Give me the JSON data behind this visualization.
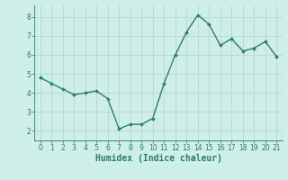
{
  "x": [
    0,
    1,
    2,
    3,
    4,
    5,
    6,
    7,
    8,
    9,
    10,
    11,
    12,
    13,
    14,
    15,
    16,
    17,
    18,
    19,
    20,
    21
  ],
  "y": [
    4.8,
    4.5,
    4.2,
    3.9,
    4.0,
    4.1,
    3.7,
    2.1,
    2.35,
    2.35,
    2.65,
    4.5,
    6.0,
    7.2,
    8.1,
    7.6,
    6.5,
    6.85,
    6.2,
    6.35,
    6.7,
    5.9
  ],
  "line_color": "#2e7d6e",
  "marker": "D",
  "marker_size": 2.0,
  "line_width": 1.0,
  "xlabel": "Humidex (Indice chaleur)",
  "xlabel_fontsize": 7.0,
  "xlabel_fontweight": "bold",
  "bg_color": "#ceeee8",
  "grid_color": "#b8d8d2",
  "xlim": [
    -0.5,
    21.5
  ],
  "ylim": [
    1.5,
    8.6
  ],
  "yticks": [
    2,
    3,
    4,
    5,
    6,
    7,
    8
  ],
  "xticks": [
    0,
    1,
    2,
    3,
    4,
    5,
    6,
    7,
    8,
    9,
    10,
    11,
    12,
    13,
    14,
    15,
    16,
    17,
    18,
    19,
    20,
    21
  ],
  "tick_fontsize": 5.5,
  "spine_color": "#2e7d6e"
}
